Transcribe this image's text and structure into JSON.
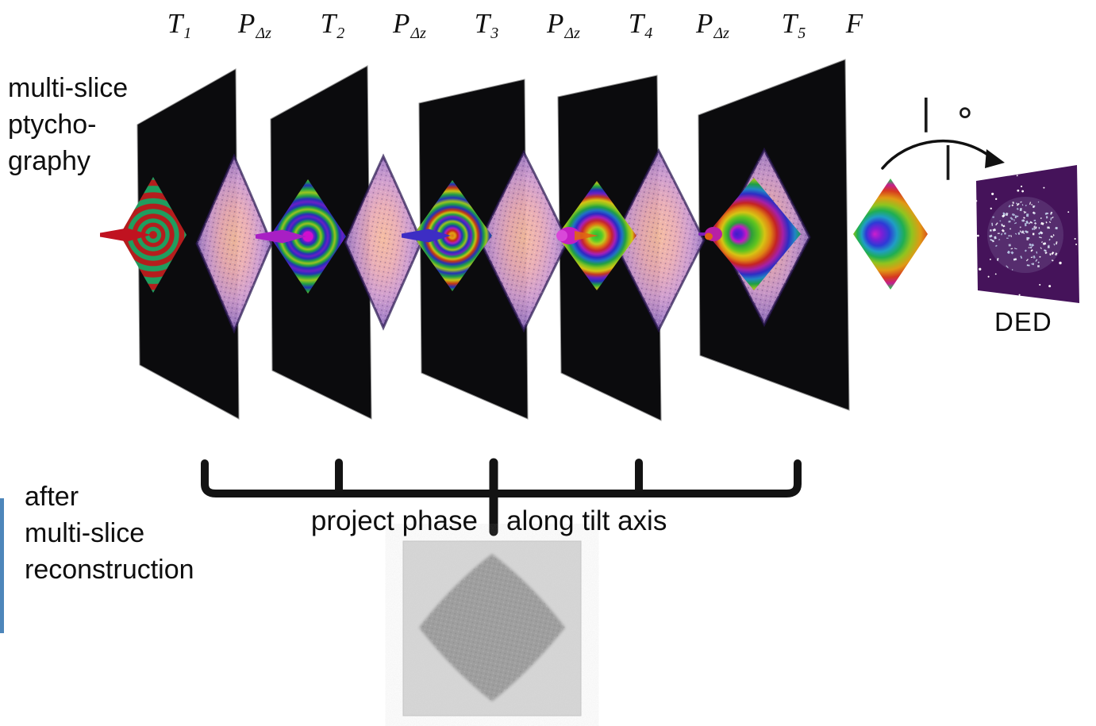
{
  "labels": {
    "method": [
      "multi-slice",
      "ptycho-",
      "graphy"
    ],
    "recon": [
      "after",
      "multi-slice",
      "reconstruction"
    ],
    "bracket_left": "project phase",
    "bracket_right": "along tilt axis",
    "detector": "DED",
    "composition": "| ∘ |"
  },
  "operators": [
    {
      "main": "T",
      "sub": "1"
    },
    {
      "main": "P",
      "sub": "Δz"
    },
    {
      "main": "T",
      "sub": "2"
    },
    {
      "main": "P",
      "sub": "Δz"
    },
    {
      "main": "T",
      "sub": "3"
    },
    {
      "main": "P",
      "sub": "Δz"
    },
    {
      "main": "T",
      "sub": "4"
    },
    {
      "main": "P",
      "sub": "Δz"
    },
    {
      "main": "T",
      "sub": "5"
    },
    {
      "main": "F",
      "sub": ""
    }
  ],
  "slices": [
    {
      "name": "slice-1",
      "probe_rings": "red-green zone plate",
      "arrow_color": "#c01220"
    },
    {
      "name": "slice-2",
      "probe_rings": "magenta core rainbow rings",
      "arrow_color": "#a81fc4"
    },
    {
      "name": "slice-3",
      "probe_rings": "orange core rainbow rings",
      "arrow_color": "#3d2dc4"
    },
    {
      "name": "slice-4",
      "probe_rings": "green core broad rainbow rings",
      "arrow_color": "#c41fc4"
    },
    {
      "name": "slice-5",
      "probe_rings": "purple core very broad rainbow rings",
      "arrow_color": "#b81fa6"
    }
  ],
  "colors": {
    "slice_plane": "#0b0b0d",
    "detector_panel": "#45135a",
    "bracket": "#131313",
    "sidebar_fragment_blue": "#4d86ba",
    "specimen_pink": "#e3a9b8",
    "reconstruction_bg": "#d8d8d8",
    "reconstruction_particle": "#989898"
  }
}
